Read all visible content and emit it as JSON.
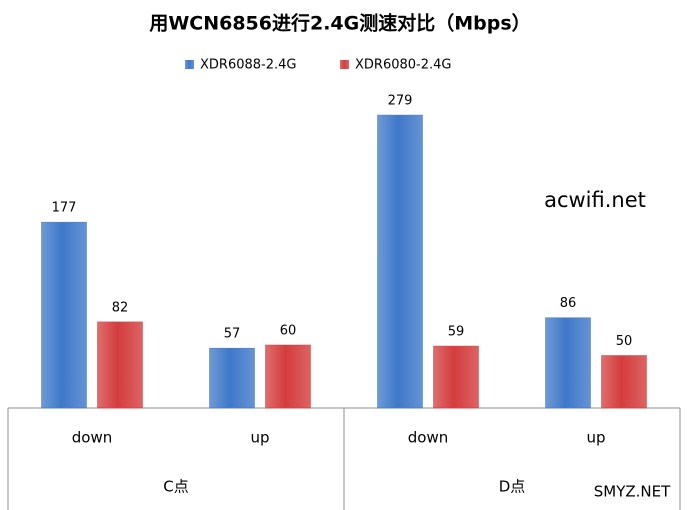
{
  "chart_data": {
    "type": "bar",
    "title": "用WCN6856进行2.4G测速对比（Mbps）",
    "groups": [
      "C点",
      "D点"
    ],
    "categories": [
      "down",
      "up",
      "down",
      "up"
    ],
    "series": [
      {
        "name": "XDR6088-2.4G",
        "color": "#3f78c9",
        "values": [
          177,
          57,
          279,
          86
        ]
      },
      {
        "name": "XDR6080-2.4G",
        "color": "#d43d3d",
        "values": [
          82,
          60,
          59,
          50
        ]
      }
    ],
    "annotations": [
      "acwifi.net",
      "SMYZ.NET"
    ]
  }
}
